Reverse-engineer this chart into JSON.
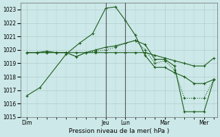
{
  "title": "",
  "xlabel": "Pression niveau de la mer( hPa )",
  "ylabel": "",
  "bg_color": "#cce8e8",
  "line_color": "#1a5c1a",
  "grid_color": "#b0cccc",
  "ylim": [
    1015,
    1023.5
  ],
  "yticks": [
    1015,
    1016,
    1017,
    1018,
    1019,
    1020,
    1021,
    1022,
    1023
  ],
  "day_labels": [
    "Dim",
    "Jeu",
    "Lun",
    "Mar",
    "Mer"
  ],
  "day_positions": [
    0,
    24,
    30,
    42,
    54
  ],
  "xlim": [
    -2,
    58
  ],
  "vlines": [
    24,
    30
  ],
  "vline_color": "#555555",
  "lines": [
    {
      "x": [
        0,
        4,
        12,
        16,
        20,
        24,
        27,
        30,
        33,
        36,
        39,
        42,
        45,
        48,
        51,
        54,
        57
      ],
      "y": [
        1016.6,
        1017.2,
        1019.7,
        1020.5,
        1021.2,
        1023.1,
        1023.2,
        1022.2,
        1021.1,
        1019.6,
        1018.7,
        1018.7,
        1018.3,
        1018.0,
        1017.5,
        1017.5,
        1017.8
      ],
      "style": "-",
      "marker": "+"
    },
    {
      "x": [
        0,
        3,
        6,
        9,
        12,
        15,
        18,
        21,
        24,
        27,
        30,
        33,
        36,
        39,
        42,
        45,
        48,
        51,
        54,
        57
      ],
      "y": [
        1019.8,
        1019.8,
        1019.9,
        1019.8,
        1019.8,
        1019.5,
        1019.8,
        1020.0,
        1020.2,
        1020.3,
        1020.5,
        1020.7,
        1020.4,
        1019.3,
        1019.3,
        1018.8,
        1015.4,
        1015.4,
        1015.4,
        1017.8
      ],
      "style": "-",
      "marker": "+"
    },
    {
      "x": [
        0,
        3,
        6,
        9,
        12,
        15,
        18,
        21,
        24,
        27,
        30,
        33,
        36,
        39,
        42,
        45,
        48,
        51,
        54,
        57
      ],
      "y": [
        1019.8,
        1019.8,
        1019.8,
        1019.8,
        1019.8,
        1019.5,
        1019.8,
        1019.9,
        1020.0,
        1020.2,
        1020.5,
        1020.7,
        1020.0,
        1019.0,
        1019.2,
        1018.5,
        1016.4,
        1016.4,
        1016.4,
        1017.8
      ],
      "style": ":",
      "marker": "+"
    },
    {
      "x": [
        0,
        3,
        6,
        9,
        12,
        15,
        18,
        21,
        24,
        27,
        30,
        33,
        36,
        39,
        42,
        45,
        48,
        51,
        54,
        57
      ],
      "y": [
        1019.8,
        1019.8,
        1019.8,
        1019.8,
        1019.8,
        1019.8,
        1019.8,
        1019.8,
        1019.8,
        1019.8,
        1019.8,
        1019.8,
        1019.8,
        1019.6,
        1019.4,
        1019.2,
        1019.0,
        1018.8,
        1018.8,
        1019.4
      ],
      "style": "-",
      "marker": "+"
    }
  ]
}
